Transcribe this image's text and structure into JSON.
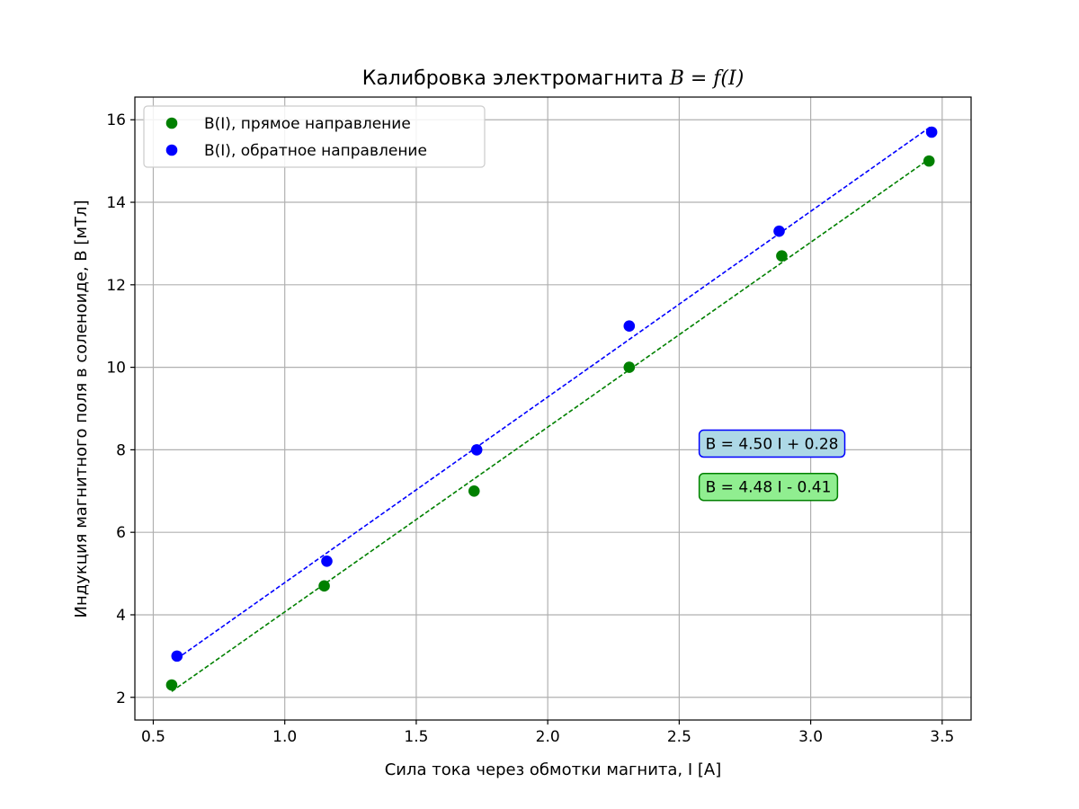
{
  "chart_data": {
    "type": "scatter",
    "title_prefix": "Калибровка электромагнита ",
    "title_math": "B = f(I)",
    "xlabel": "Сила тока через обмотки магнита, I [A]",
    "ylabel": "Индукция магнитного поля в соленоиде, B [мТл]",
    "xlim": [
      0.43,
      3.61
    ],
    "ylim": [
      1.45,
      16.55
    ],
    "xticks": [
      0.5,
      1.0,
      1.5,
      2.0,
      2.5,
      3.0,
      3.5
    ],
    "xtick_labels": [
      "0.5",
      "1.0",
      "1.5",
      "2.0",
      "2.5",
      "3.0",
      "3.5"
    ],
    "yticks": [
      2,
      4,
      6,
      8,
      10,
      12,
      14,
      16
    ],
    "ytick_labels": [
      "2",
      "4",
      "6",
      "8",
      "10",
      "12",
      "14",
      "16"
    ],
    "grid": true,
    "legend_position": "upper-left",
    "series": [
      {
        "name": "B(I), прямое направление",
        "color": "#008000",
        "x": [
          0.57,
          1.15,
          1.72,
          2.31,
          2.89,
          3.45
        ],
        "y": [
          2.3,
          4.7,
          7.0,
          10.0,
          12.7,
          15.0
        ],
        "fit": {
          "slope": 4.48,
          "intercept": -0.41,
          "x_range": [
            0.57,
            3.45
          ]
        },
        "fit_label": "B = 4.48 I - 0.41",
        "fit_label_bg": "#90ee90"
      },
      {
        "name": "B(I), обратное направление",
        "color": "#0000ff",
        "x": [
          0.59,
          1.16,
          1.73,
          2.31,
          2.88,
          3.46
        ],
        "y": [
          3.0,
          5.3,
          8.0,
          11.0,
          13.3,
          15.7
        ],
        "fit": {
          "slope": 4.5,
          "intercept": 0.28,
          "x_range": [
            0.59,
            3.46
          ]
        },
        "fit_label": "B = 4.50 I + 0.28",
        "fit_label_bg": "#add8e6"
      }
    ],
    "fit_label_positions": [
      {
        "series": 1,
        "x": 2.6,
        "y": 8.15
      },
      {
        "series": 0,
        "x": 2.6,
        "y": 7.1
      }
    ]
  }
}
